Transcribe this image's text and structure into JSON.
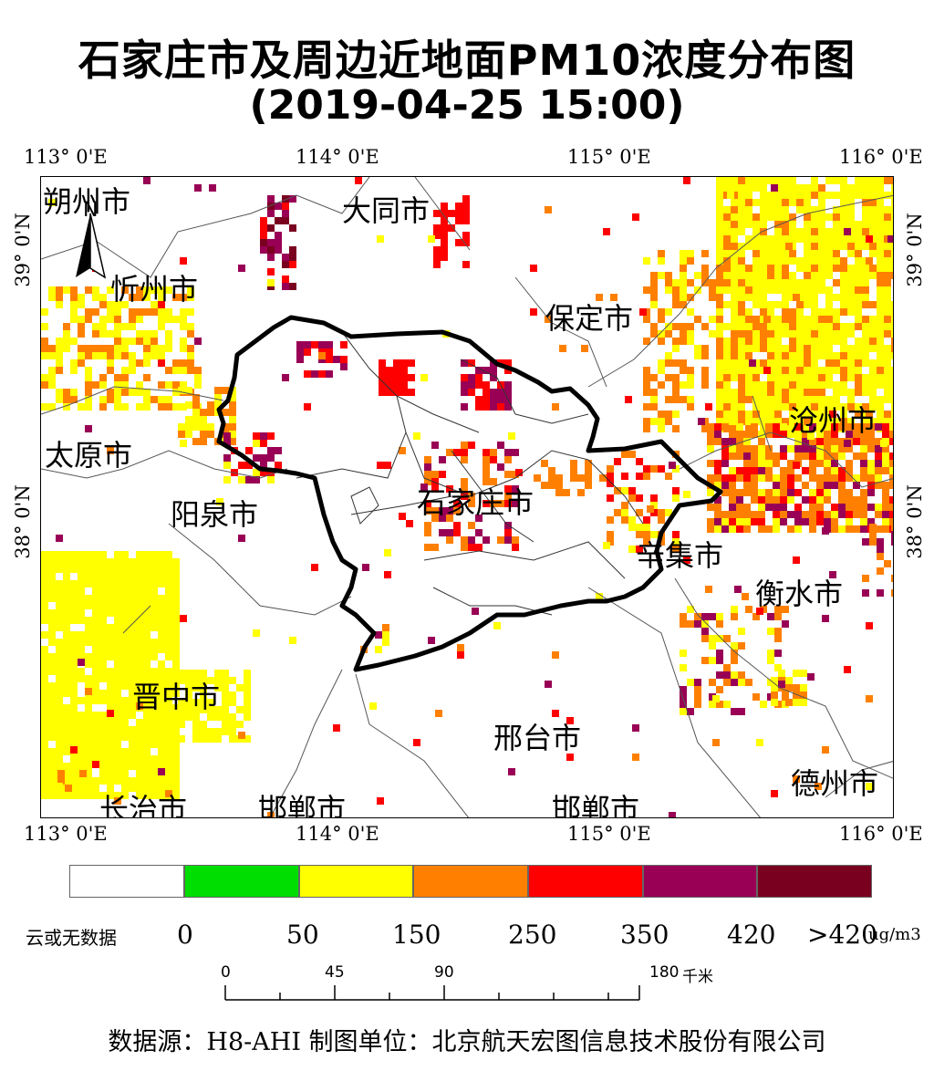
{
  "title": "石家庄市及周边近地面PM10浓度分布图",
  "subtitle": "(2019-04-25 15:00)",
  "lon_labels": [
    "113° 0'E",
    "114° 0'E",
    "115° 0'E",
    "116° 0'E"
  ],
  "lat_labels": [
    "39° 0'N",
    "38° 0'N"
  ],
  "north_arrow": "N",
  "cities": [
    {
      "name": "朔州市"
    },
    {
      "name": "大同市"
    },
    {
      "name": "忻州市"
    },
    {
      "name": "保定市"
    },
    {
      "name": "沧州市"
    },
    {
      "name": "太原市"
    },
    {
      "name": "石家庄市"
    },
    {
      "name": "阳泉市"
    },
    {
      "name": "辛集市"
    },
    {
      "name": "衡水市"
    },
    {
      "name": "晋中市"
    },
    {
      "name": "邢台市"
    },
    {
      "name": "德州市"
    },
    {
      "name": "长治市"
    },
    {
      "name": "邯郸市"
    },
    {
      "name": "邯郸市"
    }
  ],
  "legend": {
    "colors": [
      "#ffffff",
      "#00dd00",
      "#ffff00",
      "#ff8000",
      "#ff0000",
      "#990055",
      "#7a0020"
    ],
    "labels": [
      "云或无数据",
      "0",
      "50",
      "150",
      "250",
      "350",
      "420",
      ">420"
    ],
    "unit": "ug/m3"
  },
  "scale_bar": {
    "labels": [
      "0",
      "45",
      "90",
      "180"
    ],
    "unit": "千米"
  },
  "footer": "数据源：H8-AHI 制图单位：北京航天宏图信息技术股份有限公司"
}
